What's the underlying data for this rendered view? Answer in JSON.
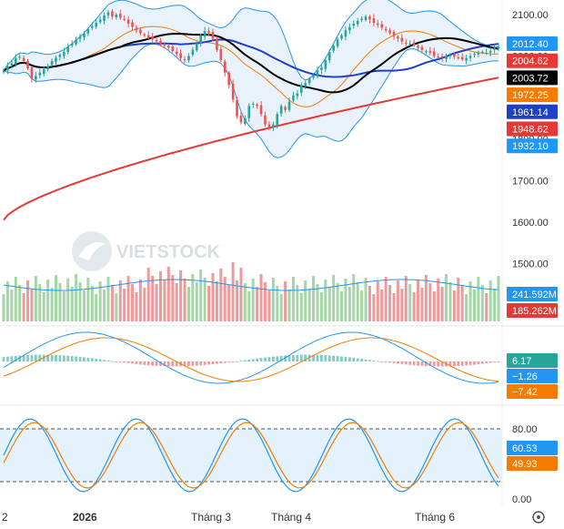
{
  "chart_data": [
    {
      "type": "candlestick",
      "title": "",
      "yticks": [
        2100,
        2000,
        1900,
        1800,
        1700,
        1600,
        1500
      ],
      "ylim": [
        1455,
        2135
      ],
      "candle_close_path": [
        1965,
        1975,
        1982,
        1995,
        1998,
        1988,
        1970,
        1945,
        1952,
        1960,
        1968,
        1975,
        1988,
        1996,
        2003,
        2010,
        2022,
        2030,
        2040,
        2048,
        2055,
        2065,
        2072,
        2080,
        2088,
        2098,
        2105,
        2095,
        2100,
        2092,
        2088,
        2078,
        2070,
        2062,
        2055,
        2050,
        2044,
        2040,
        2035,
        2030,
        2025,
        2020,
        2012,
        2005,
        1995,
        1990,
        2000,
        2015,
        2030,
        2050,
        2060,
        2055,
        2042,
        2015,
        1990,
        1960,
        1930,
        1895,
        1855,
        1840,
        1850,
        1880,
        1885,
        1880,
        1860,
        1835,
        1825,
        1835,
        1860,
        1880,
        1870,
        1890,
        1905,
        1910,
        1930,
        1935,
        1945,
        1952,
        1965,
        1972,
        1990,
        2010,
        2025,
        2040,
        2050,
        2062,
        2070,
        2078,
        2085,
        2090,
        2095,
        2088,
        2080,
        2075,
        2068,
        2062,
        2055,
        2048,
        2042,
        2035,
        2030,
        2030,
        2026,
        2020,
        2015,
        2012,
        2008,
        2000,
        1998,
        1996,
        2000,
        2002,
        1998,
        1996,
        1992,
        1995,
        2000,
        2005,
        2008,
        2010,
        2008,
        2012,
        2020,
        2024
      ],
      "price_labels": [
        {
          "value": "2012.40",
          "color": "#2196F3"
        },
        {
          "value": "2004.62",
          "color": "#E53935"
        },
        {
          "value": "2003.72",
          "color": "#000000"
        },
        {
          "value": "1972.25",
          "color": "#F57C00"
        },
        {
          "value": "1961.14",
          "color": "#1E3FC8"
        },
        {
          "value": "1948.62",
          "color": "#E53935"
        },
        {
          "value": "1932.10",
          "color": "#2196F3"
        }
      ],
      "overlays": {
        "bollinger_color": "#2196F3",
        "sma20_color": "#F57C00",
        "ma50_color": "#000000",
        "ma100_color": "#1E3FC8",
        "ma200_color": "#E53935"
      }
    },
    {
      "type": "bar",
      "label_values": [
        {
          "value": "241.592M",
          "color": "#2196F3"
        },
        {
          "value": "185.262M",
          "color": "#E53935"
        }
      ],
      "up_color": "#a5d6a7",
      "down_color": "#ef9a9a"
    },
    {
      "type": "line",
      "label_values": [
        {
          "value": "6.17",
          "color": "#26A69A"
        },
        {
          "value": "−1.26",
          "color": "#2196F3"
        },
        {
          "value": "−7.42",
          "color": "#F57C00"
        }
      ]
    },
    {
      "type": "line",
      "yticks": [
        "80.00",
        "0.00"
      ],
      "label_values": [
        {
          "value": "60.53",
          "color": "#2196F3"
        },
        {
          "value": "49.93",
          "color": "#F57C00"
        }
      ],
      "band_color": "#e3f2fd"
    }
  ],
  "x_axis": {
    "labels": [
      "2",
      "2026",
      "Tháng 3",
      "Tháng 4",
      "Tháng 6"
    ],
    "bold": [
      false,
      true,
      false,
      false,
      false
    ]
  },
  "watermark": "VIETSTOCK",
  "icons": {
    "settings": "gear-icon"
  }
}
